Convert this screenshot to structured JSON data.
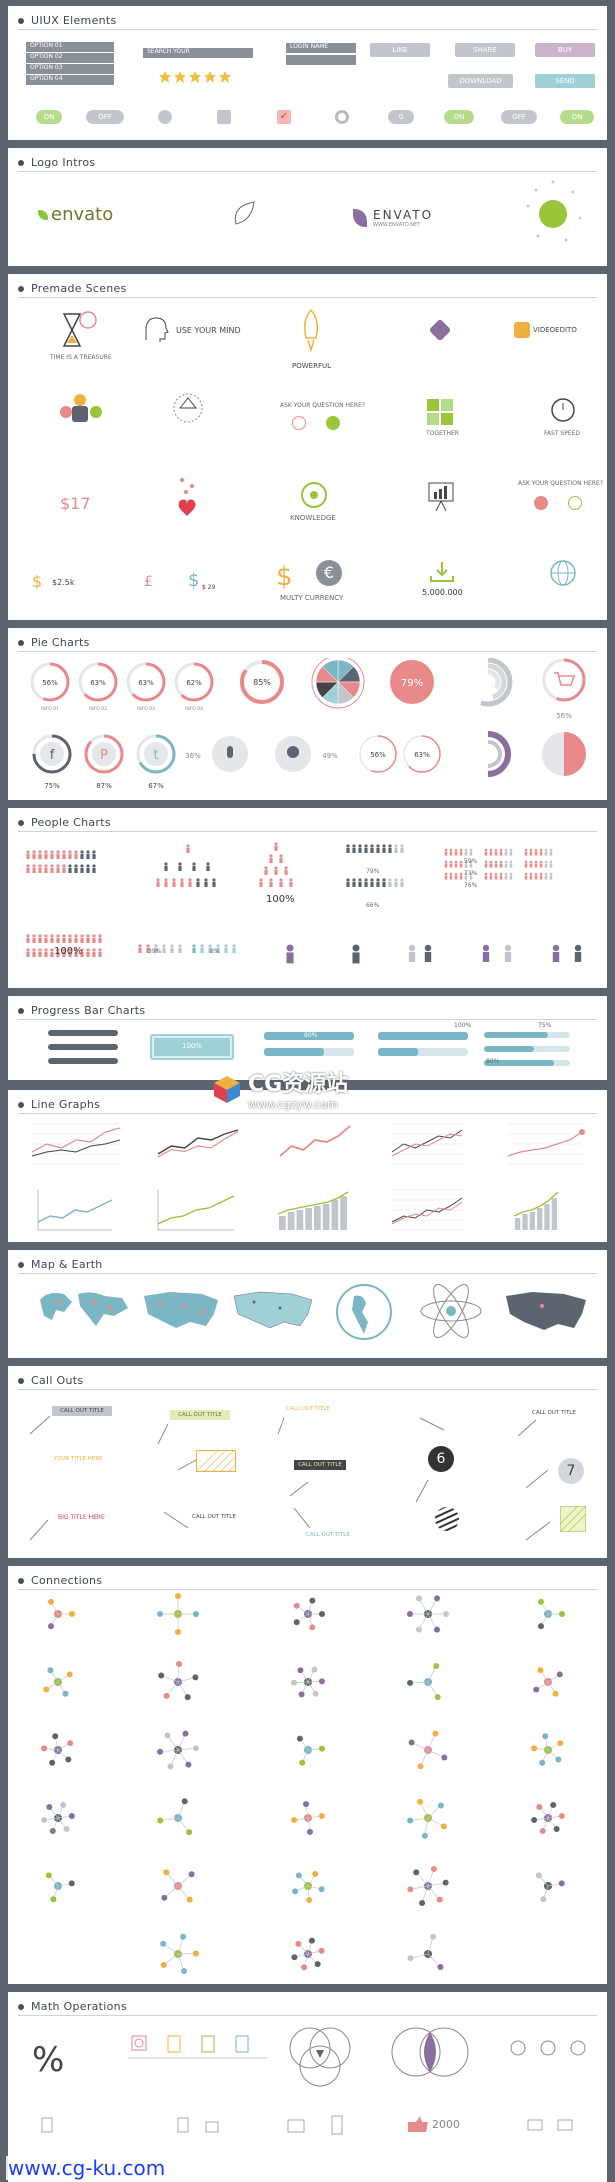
{
  "sections": {
    "uiux": "UIUX Elements",
    "logo": "Logo Intros",
    "premade": "Premade Scenes",
    "pie": "Pie Charts",
    "people": "People Charts",
    "progress": "Progress Bar Charts",
    "line": "Line Graphs",
    "map": "Map & Earth",
    "callouts": "Call Outs",
    "connections": "Connections",
    "math": "Math Operations"
  },
  "uiux": {
    "options": [
      "OPTION 01",
      "OPTION 02",
      "OPTION 03",
      "OPTION 04"
    ],
    "search_placeholder": "SEARCH YOUR",
    "login": "LOGIN NAME",
    "like": "LIKE",
    "share": "SHARE",
    "buy": "BUY",
    "download": "DOWNLOAD",
    "send": "SEND",
    "on1": "ON",
    "off1": "OFF",
    "on2": "ON",
    "off2": "OFF",
    "on3": "ON",
    "toggle_num": "0"
  },
  "logo": {
    "envato1": "envato",
    "envato2": "ENVATO",
    "envato_sub": "WWW.ENVATO.NET"
  },
  "premade": {
    "hourglass_caption": "TIME IS A TREASURE",
    "mind": "USE YOUR MIND",
    "powerful": "POWERFUL",
    "videoedit": "VIDEOEDITO",
    "ask1": "ASK YOUR QUESTION HERE?",
    "together": "TOGETHER",
    "fast_speed": "FAST SPEED",
    "price17": "$17",
    "knowledge": "KNOWLEDGE",
    "ask2": "ASK YOUR QUESTION HERE?",
    "money1": "$2.5k",
    "money2": "$ 29",
    "multi": "MULTY CURRENCY",
    "count": "5.000.000"
  },
  "pie": {
    "r1": [
      "56%",
      "63%",
      "63%",
      "62%",
      "85%"
    ],
    "r1_captions": [
      "INFO 01",
      "INFO 02",
      "INFO 03",
      "INFO 04"
    ],
    "big_pct": "79%",
    "cart_pct": "56%",
    "fb": "75%",
    "pin": "87%",
    "tw": "67%",
    "mic_pct": "36%",
    "bulb_pct": "49%",
    "d1": "56%",
    "d2": "63%"
  },
  "people": {
    "p1": "79%",
    "p2": "66%",
    "big100": "100%",
    "a": "59%",
    "b": "73%",
    "c": "76%",
    "bottom100": "100%",
    "d": "39%",
    "e": "8%"
  },
  "progress": {
    "battery": "100%",
    "bars_label": "80%",
    "top100": "100%",
    "p75": "75%",
    "p80": "80%"
  },
  "callouts": {
    "title": "CALL OUT TITLE",
    "your_title": "YOUR TITLE HERE",
    "big_title": "BIG TITLE HERE",
    "num6": "6",
    "num7": "7"
  },
  "math": {
    "percent": "%",
    "count": "2000"
  },
  "watermark": {
    "brand": "CG资源站",
    "site": "www.cgzyw.com",
    "footer": "www.cg-ku.com"
  },
  "colors": {
    "accent_teal": "#7bb6c4",
    "accent_pink": "#e98a8a",
    "accent_green": "#9ac43a",
    "accent_purple": "#8a6f9e",
    "accent_orange": "#f0b040"
  }
}
